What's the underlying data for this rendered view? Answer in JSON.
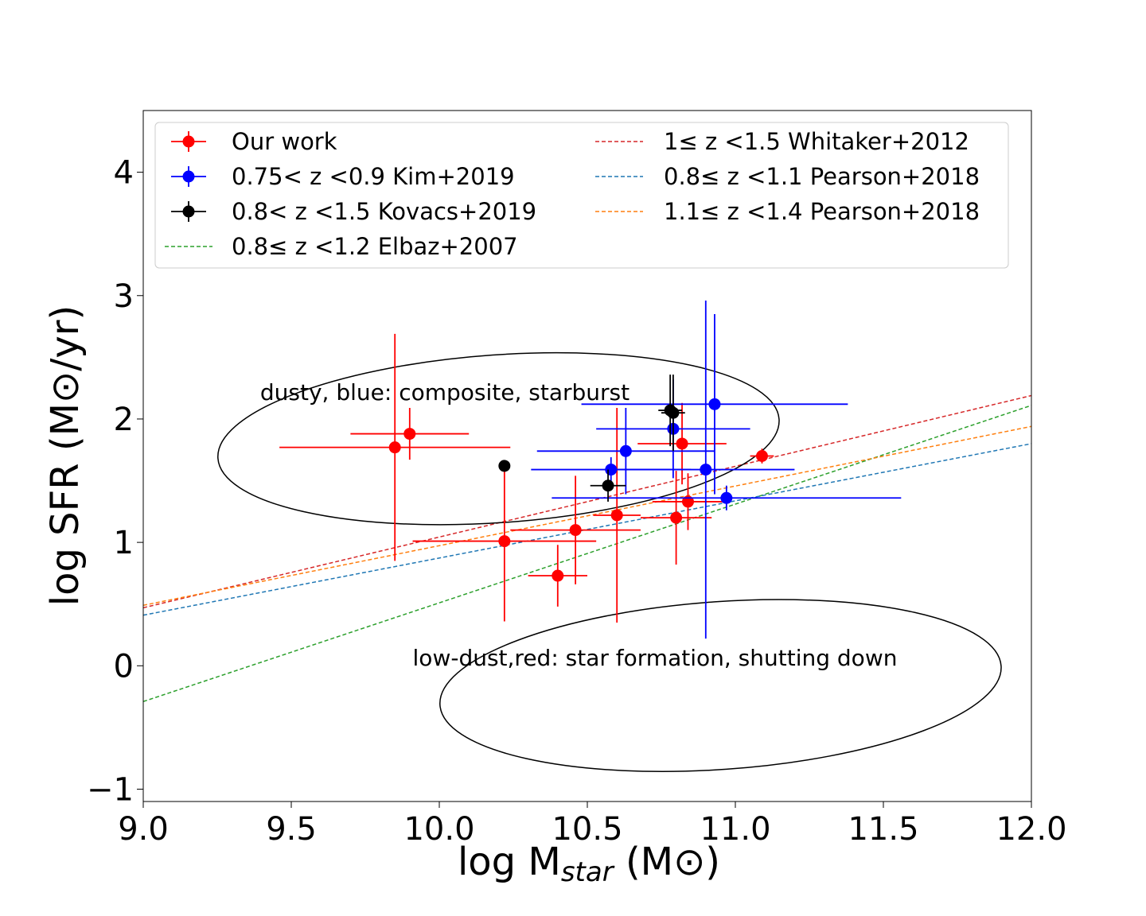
{
  "chart_data": {
    "type": "scatter",
    "title": "",
    "xlabel": {
      "main": "log M",
      "sub": "star",
      "units": "(M⊙)"
    },
    "ylabel": "log SFR (M⊙/yr)",
    "xlim": [
      9.0,
      12.0
    ],
    "ylim": [
      -1.1,
      4.5
    ],
    "xticks": [
      9.0,
      9.5,
      10.0,
      10.5,
      11.0,
      11.5,
      12.0
    ],
    "xtick_labels": [
      "9.0",
      "9.5",
      "10.0",
      "10.5",
      "11.0",
      "11.5",
      "12.0"
    ],
    "yticks": [
      -1,
      0,
      1,
      2,
      3,
      4
    ],
    "ytick_labels": [
      "−1",
      "0",
      "1",
      "2",
      "3",
      "4"
    ],
    "grid": false,
    "legend_position": "top",
    "series": [
      {
        "name": "Our work",
        "color": "#ff0000",
        "points": [
          {
            "x": 9.85,
            "y": 1.77,
            "xerr": 0.39,
            "yerr": 0.92
          },
          {
            "x": 9.9,
            "y": 1.88,
            "xerr": 0.2,
            "yerr": 0.21
          },
          {
            "x": 10.22,
            "y": 1.01,
            "xerr": 0.31,
            "yerr": 0.65
          },
          {
            "x": 10.4,
            "y": 0.73,
            "xerr": 0.1,
            "yerr": 0.25
          },
          {
            "x": 10.46,
            "y": 1.1,
            "xerr": 0.22,
            "yerr": 0.44
          },
          {
            "x": 10.6,
            "y": 1.22,
            "xerr": 0.08,
            "yerr": 0.87
          },
          {
            "x": 10.8,
            "y": 1.2,
            "xerr": 0.12,
            "yerr": 0.38
          },
          {
            "x": 10.84,
            "y": 1.33,
            "xerr": 0.12,
            "yerr": 0.23
          },
          {
            "x": 10.82,
            "y": 1.8,
            "xerr": 0.15,
            "yerr": 0.33
          },
          {
            "x": 11.09,
            "y": 1.7,
            "xerr": 0.04,
            "yerr": 0.06
          }
        ]
      },
      {
        "name": "0.75< z <0.9 Kim+2019",
        "color": "#0000ff",
        "points": [
          {
            "x": 10.58,
            "y": 1.59,
            "xerr": 0.27,
            "yerr": 0.1
          },
          {
            "x": 10.63,
            "y": 1.74,
            "xerr": 0.3,
            "yerr": 0.35
          },
          {
            "x": 10.79,
            "y": 1.92,
            "xerr": 0.26,
            "yerr": 0.4
          },
          {
            "x": 10.9,
            "y": 1.59,
            "xerr": 0.3,
            "yerr": 1.37
          },
          {
            "x": 10.93,
            "y": 2.12,
            "xerr": 0.45,
            "yerr": 0.73
          },
          {
            "x": 10.97,
            "y": 1.36,
            "xerr": 0.59,
            "yerr": 0.1
          }
        ]
      },
      {
        "name": "0.8< z <1.5 Kovacs+2019",
        "color": "#000000",
        "points": [
          {
            "x": 10.22,
            "y": 1.62,
            "xerr": 0.0,
            "yerr": 0.0
          },
          {
            "x": 10.57,
            "y": 1.46,
            "xerr": 0.06,
            "yerr": 0.13
          },
          {
            "x": 10.78,
            "y": 2.07,
            "xerr": 0.04,
            "yerr": 0.29
          },
          {
            "x": 10.79,
            "y": 2.05,
            "xerr": 0.04,
            "yerr": 0.31
          }
        ]
      }
    ],
    "lines": [
      {
        "name": "0.8≤ z <1.2 Elbaz+2007",
        "color": "#2ca02c",
        "x": [
          9.0,
          12.0
        ],
        "y": [
          -0.29,
          2.11
        ]
      },
      {
        "name": "1≤ z <1.5 Whitaker+2012",
        "color": "#d62728",
        "x": [
          9.0,
          12.0
        ],
        "y": [
          0.47,
          2.19
        ]
      },
      {
        "name": "0.8≤ z <1.1 Pearson+2018",
        "color": "#1f77b4",
        "x": [
          9.0,
          12.0
        ],
        "y": [
          0.41,
          1.8
        ]
      },
      {
        "name": "1.1≤ z <1.4 Pearson+2018",
        "color": "#ff7f0e",
        "x": [
          9.0,
          12.0
        ],
        "y": [
          0.49,
          1.94
        ]
      }
    ],
    "regions": [
      {
        "label": "dusty, blue: composite, starburst",
        "center": [
          10.2,
          1.84
        ],
        "semi_x": 0.95,
        "semi_y": 0.68
      },
      {
        "label": "low-dust,red: star formation, shutting down",
        "center": [
          10.95,
          -0.16
        ],
        "semi_x": 0.95,
        "semi_y": 0.68
      }
    ]
  }
}
